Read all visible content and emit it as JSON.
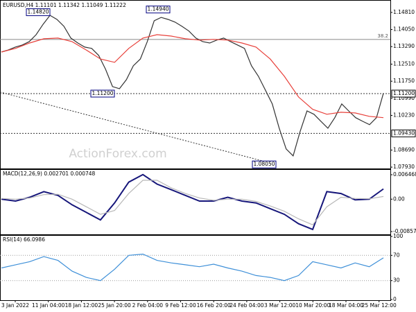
{
  "chart_data": [
    {
      "type": "line",
      "title": "EURUSD,H4  1.11101 1.11342 1.11049 1.11222",
      "watermark": "ActionForex.com",
      "ylim": [
        1.0787,
        1.1527
      ],
      "yticks": [
        {
          "value": 1.1481,
          "label": "1.14810"
        },
        {
          "value": 1.1405,
          "label": "1.14050"
        },
        {
          "value": 1.1329,
          "label": "1.13290"
        },
        {
          "value": 1.1251,
          "label": "1.12510"
        },
        {
          "value": 1.1175,
          "label": "1.11750"
        },
        {
          "value": 1.1099,
          "label": "1.10990"
        },
        {
          "value": 1.1023,
          "label": "1.10230"
        },
        {
          "value": 1.0869,
          "label": "1.08690"
        },
        {
          "value": 1.0793,
          "label": "1.07930"
        }
      ],
      "series": [
        {
          "color": "#333333",
          "values": [
            1.1305,
            1.1314,
            1.1327,
            1.1336,
            1.1351,
            1.1382,
            1.1428,
            1.1468,
            1.145,
            1.1419,
            1.1367,
            1.1345,
            1.1327,
            1.1321,
            1.129,
            1.1228,
            1.1151,
            1.1142,
            1.1182,
            1.1244,
            1.1274,
            1.1351,
            1.1444,
            1.1459,
            1.145,
            1.1438,
            1.1419,
            1.1398,
            1.1367,
            1.1351,
            1.1345,
            1.1358,
            1.1367,
            1.1351,
            1.1336,
            1.1321,
            1.1244,
            1.1197,
            1.1136,
            1.1074,
            1.0966,
            1.0874,
            1.0843,
            1.0951,
            1.1043,
            1.1028,
            1.0997,
            1.0966,
            1.1013,
            1.1074,
            1.1043,
            1.1013,
            1.0997,
            1.0982,
            1.1013,
            1.1122
          ]
        },
        {
          "color": "#e8403a",
          "values": [
            1.1305,
            1.1321,
            1.1345,
            1.1364,
            1.1367,
            1.1351,
            1.1314,
            1.1274,
            1.1259,
            1.1321,
            1.1367,
            1.1382,
            1.1376,
            1.1364,
            1.1358,
            1.1361,
            1.1358,
            1.1345,
            1.1327,
            1.1274,
            1.1197,
            1.1105,
            1.105,
            1.1028,
            1.1037,
            1.1034,
            1.1019,
            1.1013
          ]
        }
      ],
      "fib": {
        "label": "38.2",
        "value": 1.1361
      },
      "levels": [
        {
          "value": 1.112,
          "label": "1.11200"
        },
        {
          "value": 1.0943,
          "label": "1.09430"
        }
      ],
      "annotations": [
        {
          "value": 1.1482,
          "label": "1.14820"
        },
        {
          "value": 1.1494,
          "label": "1.14940"
        },
        {
          "value": 1.112,
          "label": "1.11200"
        },
        {
          "value": 1.0805,
          "label": "1.08050"
        }
      ],
      "trendline": [
        1.1127,
        1.0805
      ]
    },
    {
      "type": "line",
      "title": "MACD(12,26,9) 0.002701 0.000748",
      "ylim": [
        -0.00931,
        0.00757
      ],
      "yticks": [
        0.006468,
        {
          "value": 0,
          "label": "0.00"
        },
        -0.008573
      ],
      "series": [
        {
          "color": "#16167a",
          "values": [
            0.0,
            -0.0005,
            0.0005,
            0.002,
            0.001,
            -0.0015,
            -0.0035,
            -0.0055,
            -0.001,
            0.0045,
            0.0065,
            0.004,
            0.0025,
            0.001,
            -0.0005,
            -0.0005,
            0.0005,
            -0.0005,
            -0.001,
            -0.0025,
            -0.004,
            -0.0065,
            -0.008,
            0.002,
            0.0015,
            -0.0002,
            0.0,
            0.0027
          ]
        },
        {
          "color": "#b8b8b8",
          "values": [
            0.0002,
            0.0,
            0.0003,
            0.0012,
            0.0013,
            0.0,
            -0.002,
            -0.004,
            -0.003,
            0.0015,
            0.005,
            0.005,
            0.003,
            0.0015,
            0.0003,
            -0.0003,
            0.0,
            0.0,
            -0.0006,
            -0.0018,
            -0.0032,
            -0.0052,
            -0.0068,
            -0.002,
            0.0005,
            0.0002,
            0.0001,
            0.0007
          ]
        }
      ]
    },
    {
      "type": "line",
      "title": "RSI(14) 66.0986",
      "ylim": [
        0,
        100
      ],
      "yticks": [
        100,
        70,
        30,
        0
      ],
      "levels": [
        70,
        30
      ],
      "series": [
        {
          "color": "#3d8fd8",
          "values": [
            50,
            55,
            60,
            68,
            62,
            45,
            35,
            30,
            48,
            70,
            72,
            62,
            58,
            55,
            52,
            56,
            50,
            45,
            38,
            35,
            30,
            38,
            60,
            55,
            50,
            58,
            52,
            66
          ]
        }
      ],
      "xticks": [
        "3 Jan 2022",
        "11 Jan 04:00",
        "18 Jan 12:00",
        "25 Jan 20:00",
        "2 Feb 04:00",
        "9 Feb 12:00",
        "16 Feb 20:00",
        "24 Feb 04:00",
        "3 Mar 12:00",
        "10 Mar 20:00",
        "18 Mar 04:00",
        "25 Mar 12:00"
      ]
    }
  ]
}
